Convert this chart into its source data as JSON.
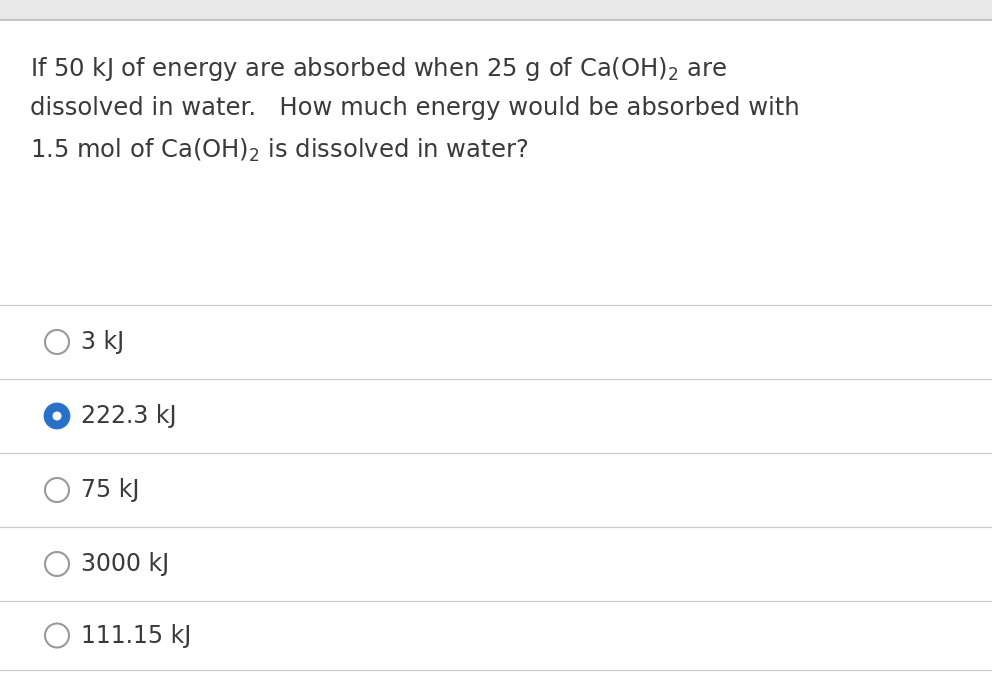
{
  "question_lines": [
    "If 50 kJ of energy are absorbed when 25 g of Ca(OH)$_2$ are",
    "dissolved in water.   How much energy would be absorbed with",
    "1.5 mol of Ca(OH)$_2$ is dissolved in water?"
  ],
  "options": [
    "3 kJ",
    "222.3 kJ",
    "75 kJ",
    "3000 kJ",
    "111.15 kJ"
  ],
  "selected_index": 1,
  "bg_color": "#efefef",
  "card_color": "#ffffff",
  "text_color": "#3a3a3a",
  "line_color": "#cccccc",
  "circle_border_color": "#999999",
  "circle_selected_fill": "#2970c9",
  "circle_selected_border": "#2970c9",
  "top_strip_color": "#e8e8e8",
  "separator_color": "#bbbbbb",
  "font_size_question": 17.5,
  "font_size_option": 17
}
